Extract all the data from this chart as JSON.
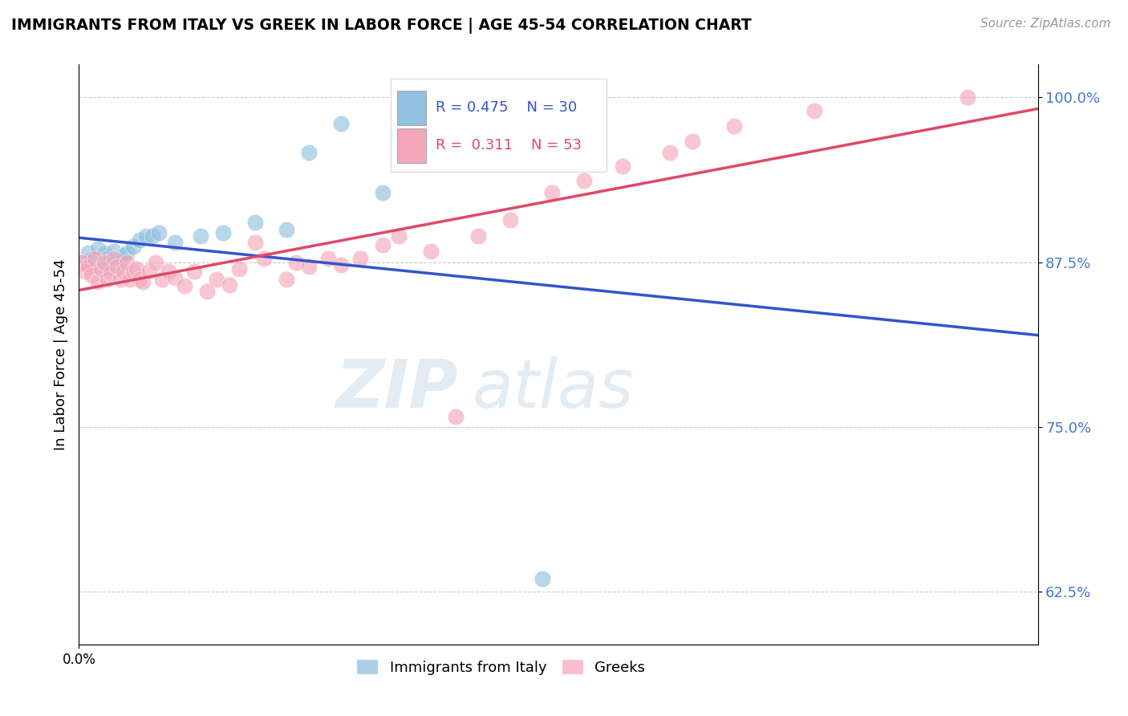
{
  "title": "IMMIGRANTS FROM ITALY VS GREEK IN LABOR FORCE | AGE 45-54 CORRELATION CHART",
  "source": "Source: ZipAtlas.com",
  "ylabel": "In Labor Force | Age 45-54",
  "xlim": [
    0.0,
    0.3
  ],
  "ylim": [
    0.585,
    1.025
  ],
  "yticks": [
    0.625,
    0.75,
    0.875,
    1.0
  ],
  "ytick_labels": [
    "62.5%",
    "75.0%",
    "87.5%",
    "100.0%"
  ],
  "italy_R": 0.475,
  "italy_N": 30,
  "greek_R": 0.311,
  "greek_N": 53,
  "italy_color": "#92c0e0",
  "greek_color": "#f5a8bc",
  "italy_line_color": "#3355cc",
  "greek_line_color": "#e04868",
  "background_color": "#ffffff",
  "italy_x": [
    0.001,
    0.003,
    0.004,
    0.005,
    0.006,
    0.007,
    0.007,
    0.008,
    0.009,
    0.01,
    0.011,
    0.012,
    0.013,
    0.014,
    0.015,
    0.017,
    0.019,
    0.021,
    0.023,
    0.025,
    0.03,
    0.038,
    0.045,
    0.055,
    0.065,
    0.072,
    0.082,
    0.095,
    0.11,
    0.145
  ],
  "italy_y": [
    0.875,
    0.882,
    0.878,
    0.87,
    0.885,
    0.875,
    0.87,
    0.882,
    0.878,
    0.872,
    0.883,
    0.877,
    0.875,
    0.88,
    0.882,
    0.887,
    0.892,
    0.895,
    0.895,
    0.897,
    0.89,
    0.895,
    0.897,
    0.905,
    0.9,
    0.958,
    0.98,
    0.928,
    0.95,
    0.635
  ],
  "greek_x": [
    0.001,
    0.002,
    0.003,
    0.004,
    0.005,
    0.006,
    0.007,
    0.008,
    0.009,
    0.01,
    0.011,
    0.012,
    0.013,
    0.014,
    0.015,
    0.016,
    0.017,
    0.018,
    0.019,
    0.02,
    0.022,
    0.024,
    0.026,
    0.028,
    0.03,
    0.033,
    0.036,
    0.04,
    0.043,
    0.047,
    0.05,
    0.055,
    0.058,
    0.065,
    0.068,
    0.072,
    0.078,
    0.082,
    0.088,
    0.095,
    0.1,
    0.11,
    0.118,
    0.125,
    0.135,
    0.148,
    0.158,
    0.17,
    0.185,
    0.192,
    0.205,
    0.23,
    0.278
  ],
  "greek_y": [
    0.875,
    0.868,
    0.872,
    0.865,
    0.878,
    0.86,
    0.87,
    0.875,
    0.862,
    0.867,
    0.878,
    0.872,
    0.862,
    0.868,
    0.875,
    0.862,
    0.868,
    0.87,
    0.862,
    0.86,
    0.868,
    0.875,
    0.862,
    0.868,
    0.863,
    0.857,
    0.868,
    0.853,
    0.862,
    0.858,
    0.87,
    0.89,
    0.878,
    0.862,
    0.875,
    0.872,
    0.878,
    0.873,
    0.878,
    0.888,
    0.895,
    0.883,
    0.758,
    0.895,
    0.907,
    0.928,
    0.937,
    0.948,
    0.958,
    0.967,
    0.978,
    0.99,
    1.0
  ]
}
